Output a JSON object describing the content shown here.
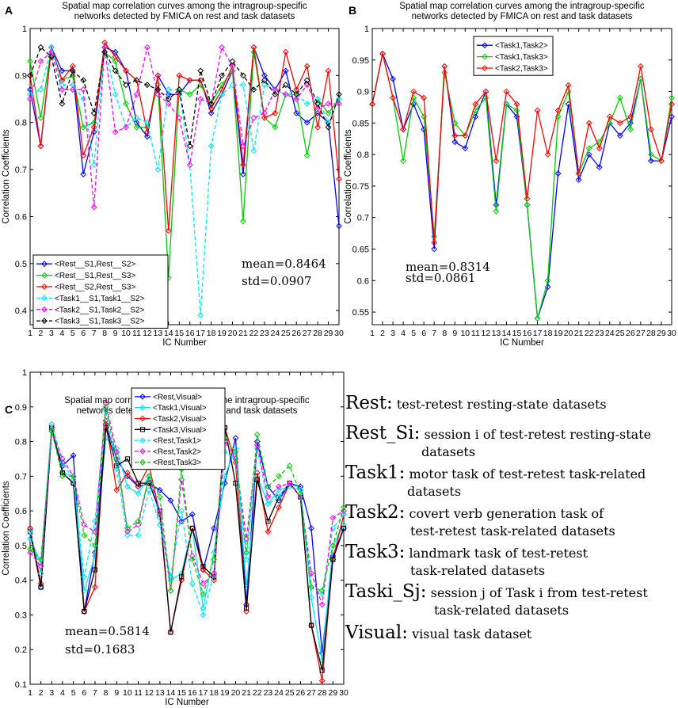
{
  "chart_data": [
    {
      "panel_label": "A",
      "type": "line",
      "title": "Spatial map correlation curves among the intragroup-specific networks detected by FMICA on rest and task datasets",
      "title_lines": [
        "Spatial map correlation curves among the intragroup-specific",
        "networks detected by FMICA on rest and task datasets"
      ],
      "xlabel": "IC Number",
      "ylabel": "Correlation Coefficients",
      "xlim": [
        1,
        30
      ],
      "ylim": [
        0.37,
        1
      ],
      "yticks": [
        0.4,
        0.5,
        0.6,
        0.7,
        0.8,
        0.9,
        1
      ],
      "ytick_labels": [
        "0.4",
        "0.5",
        "0.6",
        "0.7",
        "0.8",
        "0.9",
        "1"
      ],
      "x": [
        1,
        2,
        3,
        4,
        5,
        6,
        7,
        8,
        9,
        10,
        11,
        12,
        13,
        14,
        15,
        16,
        17,
        18,
        19,
        20,
        21,
        22,
        23,
        24,
        25,
        26,
        27,
        28,
        29,
        30
      ],
      "legend_position": "bottom-left",
      "stats": [
        "mean=0.8464",
        "std=0.0907"
      ],
      "series": [
        {
          "name": "<Rest__S1,Rest__S2>",
          "color": "#0000ff",
          "dash": "",
          "marker": "diamond",
          "values": [
            0.87,
            0.75,
            0.96,
            0.91,
            0.91,
            0.69,
            0.78,
            0.96,
            0.95,
            0.91,
            0.8,
            0.77,
            0.9,
            0.86,
            0.86,
            0.89,
            0.89,
            0.82,
            0.86,
            0.91,
            0.69,
            0.96,
            0.9,
            0.87,
            0.91,
            0.82,
            0.8,
            0.82,
            0.8,
            0.58
          ]
        },
        {
          "name": "<Rest__S1,Rest__S3>",
          "color": "#00cc00",
          "dash": "",
          "marker": "diamond",
          "values": [
            0.93,
            0.81,
            0.96,
            0.89,
            0.9,
            0.79,
            0.8,
            0.95,
            0.93,
            0.84,
            0.79,
            0.79,
            0.88,
            0.47,
            0.87,
            0.86,
            0.88,
            0.84,
            0.88,
            0.91,
            0.59,
            0.95,
            0.81,
            0.79,
            0.86,
            0.86,
            0.73,
            0.85,
            0.82,
            0.85
          ]
        },
        {
          "name": "<Rest__S2,Rest__S3>",
          "color": "#ff0000",
          "dash": "",
          "marker": "diamond",
          "values": [
            0.9,
            0.75,
            0.96,
            0.89,
            0.92,
            0.73,
            0.79,
            0.97,
            0.94,
            0.91,
            0.89,
            0.78,
            0.9,
            0.57,
            0.9,
            0.89,
            0.89,
            0.83,
            0.87,
            0.92,
            0.71,
            0.96,
            0.81,
            0.82,
            0.95,
            0.87,
            0.92,
            0.79,
            0.91,
            0.68
          ]
        },
        {
          "name": "<Task1__S1,Task1__S2>",
          "color": "#00e5ff",
          "dash": "5,3",
          "marker": "diamond",
          "values": [
            0.86,
            0.87,
            0.96,
            0.88,
            0.88,
            0.85,
            0.71,
            0.96,
            0.86,
            0.79,
            0.81,
            0.8,
            0.7,
            0.87,
            0.87,
            0.71,
            0.39,
            0.75,
            0.86,
            0.88,
            0.88,
            0.74,
            0.88,
            0.87,
            0.86,
            0.86,
            0.84,
            0.85,
            0.8,
            0.85
          ]
        },
        {
          "name": "<Task2__S1,Task2__S2>",
          "color": "#ff00ff",
          "dash": "5,3",
          "marker": "diamond",
          "values": [
            0.85,
            0.93,
            0.95,
            0.87,
            0.87,
            0.87,
            0.62,
            0.96,
            0.78,
            0.79,
            0.86,
            0.96,
            0.86,
            0.84,
            0.81,
            0.71,
            0.85,
            0.84,
            0.96,
            0.92,
            0.75,
            0.81,
            0.82,
            0.87,
            0.86,
            0.85,
            0.88,
            0.83,
            0.84,
            0.84
          ]
        },
        {
          "name": "<Task3__S1,Task3__S2>",
          "color": "#000000",
          "dash": "5,3",
          "marker": "diamond",
          "values": [
            0.9,
            0.96,
            0.94,
            0.84,
            0.91,
            0.89,
            0.82,
            0.95,
            0.91,
            0.88,
            0.89,
            0.88,
            0.87,
            0.85,
            0.87,
            0.75,
            0.91,
            0.84,
            0.9,
            0.93,
            0.9,
            0.87,
            0.89,
            0.86,
            0.88,
            0.86,
            0.89,
            0.84,
            0.79,
            0.86
          ]
        }
      ]
    },
    {
      "panel_label": "B",
      "type": "line",
      "title": "Spatial map correlation curves among the intragroup-specific networks detected by FMICA on rest and task datasets",
      "title_lines": [
        "Spatial map correlation curves among the intragroup-specific",
        "networks detected by FMICA on rest and task datasets"
      ],
      "xlabel": "IC Number",
      "ylabel": "Correlation Coefficients",
      "xlim": [
        1,
        30
      ],
      "ylim": [
        0.53,
        1
      ],
      "yticks": [
        0.55,
        0.6,
        0.65,
        0.7,
        0.75,
        0.8,
        0.85,
        0.9,
        0.95,
        1
      ],
      "ytick_labels": [
        "0.55",
        "0.6",
        "0.65",
        "0.7",
        "0.75",
        "0.8",
        "0.85",
        "0.9",
        "0.95",
        "1"
      ],
      "x": [
        1,
        2,
        3,
        4,
        5,
        6,
        7,
        8,
        9,
        10,
        11,
        12,
        13,
        14,
        15,
        16,
        17,
        18,
        19,
        20,
        21,
        22,
        23,
        24,
        25,
        26,
        27,
        28,
        29,
        30
      ],
      "legend_position": "top-left",
      "stats": [
        "mean=0.8314",
        "std=0.0861"
      ],
      "series": [
        {
          "name": "<Task1,Task2>",
          "color": "#0000ff",
          "dash": "",
          "marker": "diamond",
          "values": [
            0.88,
            0.96,
            0.92,
            0.84,
            0.88,
            0.84,
            0.65,
            0.94,
            0.82,
            0.81,
            0.86,
            0.9,
            0.72,
            0.88,
            0.86,
            0.72,
            0.54,
            0.59,
            0.77,
            0.88,
            0.76,
            0.8,
            0.78,
            0.85,
            0.83,
            0.85,
            0.92,
            0.79,
            0.79,
            0.86
          ]
        },
        {
          "name": "<Task1,Task3>",
          "color": "#00cc00",
          "dash": "",
          "marker": "diamond",
          "values": [
            0.88,
            0.96,
            0.89,
            0.79,
            0.89,
            0.86,
            0.67,
            0.93,
            0.85,
            0.83,
            0.87,
            0.89,
            0.71,
            0.88,
            0.87,
            0.72,
            0.54,
            0.6,
            0.86,
            0.9,
            0.77,
            0.81,
            0.82,
            0.85,
            0.89,
            0.84,
            0.92,
            0.8,
            0.79,
            0.89
          ]
        },
        {
          "name": "<Task2,Task3>",
          "color": "#ff0000",
          "dash": "",
          "marker": "diamond",
          "values": [
            0.88,
            0.96,
            0.89,
            0.84,
            0.9,
            0.89,
            0.66,
            0.94,
            0.83,
            0.83,
            0.88,
            0.9,
            0.79,
            0.9,
            0.88,
            0.73,
            0.87,
            0.8,
            0.87,
            0.91,
            0.77,
            0.85,
            0.81,
            0.86,
            0.85,
            0.86,
            0.94,
            0.84,
            0.79,
            0.88
          ]
        }
      ]
    },
    {
      "panel_label": "C",
      "type": "line",
      "title": "Spatial map correlation curves among the intragroup-specific networks detected by FMICA on rest and task datasets",
      "title_lines": [
        "Spatial map correlation curves among the intragroup-specific",
        "networks detected by FMICA on rest and task datasets"
      ],
      "xlabel": "IC Number",
      "ylabel": "Correlation Coefficients",
      "xlim": [
        1,
        30
      ],
      "ylim": [
        0.1,
        1
      ],
      "yticks": [
        0.1,
        0.2,
        0.3,
        0.4,
        0.5,
        0.6,
        0.7,
        0.8,
        0.9,
        1
      ],
      "ytick_labels": [
        "0.1",
        "0.2",
        "0.3",
        "0.4",
        "0.5",
        "0.6",
        "0.7",
        "0.8",
        "0.9",
        "1"
      ],
      "x": [
        1,
        2,
        3,
        4,
        5,
        6,
        7,
        8,
        9,
        10,
        11,
        12,
        13,
        14,
        15,
        16,
        17,
        18,
        19,
        20,
        21,
        22,
        23,
        24,
        25,
        26,
        27,
        28,
        29,
        30
      ],
      "legend_position": "top-center",
      "stats": [
        "mean=0.5814",
        "std=0.1683"
      ],
      "series": [
        {
          "name": "<Rest,Visual>",
          "color": "#0000ff",
          "dash": "",
          "marker": "diamond",
          "values": [
            0.55,
            0.38,
            0.83,
            0.73,
            0.76,
            0.31,
            0.48,
            0.85,
            0.75,
            0.7,
            0.67,
            0.68,
            0.66,
            0.63,
            0.57,
            0.59,
            0.43,
            0.55,
            0.68,
            0.81,
            0.33,
            0.8,
            0.67,
            0.63,
            0.68,
            0.67,
            0.55,
            0.19,
            0.47,
            0.55
          ]
        },
        {
          "name": "<Task1,Visual>",
          "color": "#00e5ff",
          "dash": "",
          "marker": "diamond",
          "values": [
            0.52,
            0.45,
            0.85,
            0.71,
            0.7,
            0.37,
            0.47,
            0.81,
            0.78,
            0.67,
            0.65,
            0.7,
            0.58,
            0.4,
            0.42,
            0.55,
            0.32,
            0.48,
            0.7,
            0.78,
            0.38,
            0.7,
            0.62,
            0.66,
            0.67,
            0.66,
            0.35,
            0.17,
            0.5,
            0.56
          ]
        },
        {
          "name": "<Task2,Visual>",
          "color": "#ff0000",
          "dash": "",
          "marker": "diamond",
          "values": [
            0.55,
            0.39,
            0.84,
            0.71,
            0.68,
            0.31,
            0.38,
            0.86,
            0.66,
            0.71,
            0.67,
            0.73,
            0.59,
            0.25,
            0.4,
            0.55,
            0.43,
            0.4,
            0.84,
            0.74,
            0.31,
            0.71,
            0.54,
            0.61,
            0.68,
            0.64,
            0.27,
            0.11,
            0.46,
            0.59
          ]
        },
        {
          "name": "<Task3,Visual>",
          "color": "#000000",
          "dash": "",
          "marker": "square",
          "values": [
            0.54,
            0.38,
            0.84,
            0.71,
            0.68,
            0.31,
            0.43,
            0.84,
            0.73,
            0.75,
            0.68,
            0.68,
            0.6,
            0.25,
            0.41,
            0.55,
            0.44,
            0.41,
            0.84,
            0.68,
            0.32,
            0.69,
            0.57,
            0.64,
            0.68,
            0.64,
            0.27,
            0.14,
            0.46,
            0.55
          ]
        },
        {
          "name": "<Rest,Task1>",
          "color": "#00e5ff",
          "dash": "5,3",
          "marker": "diamond",
          "values": [
            0.54,
            0.42,
            0.85,
            0.74,
            0.69,
            0.41,
            0.57,
            0.89,
            0.72,
            0.53,
            0.53,
            0.66,
            0.56,
            0.41,
            0.6,
            0.39,
            0.3,
            0.42,
            0.77,
            0.75,
            0.46,
            0.78,
            0.62,
            0.64,
            0.68,
            0.66,
            0.38,
            0.36,
            0.55,
            0.59
          ]
        },
        {
          "name": "<Rest,Task2>",
          "color": "#ff00ff",
          "dash": "5,3",
          "marker": "diamond",
          "values": [
            0.48,
            0.44,
            0.83,
            0.75,
            0.7,
            0.56,
            0.54,
            0.91,
            0.77,
            0.54,
            0.56,
            0.7,
            0.6,
            0.37,
            0.69,
            0.47,
            0.39,
            0.42,
            0.8,
            0.75,
            0.52,
            0.79,
            0.64,
            0.67,
            0.68,
            0.64,
            0.42,
            0.33,
            0.58,
            0.6
          ]
        },
        {
          "name": "<Rest,Task3>",
          "color": "#00cc00",
          "dash": "5,3",
          "marker": "diamond",
          "values": [
            0.49,
            0.46,
            0.83,
            0.7,
            0.7,
            0.53,
            0.5,
            0.9,
            0.75,
            0.55,
            0.57,
            0.7,
            0.64,
            0.37,
            0.72,
            0.46,
            0.36,
            0.46,
            0.81,
            0.77,
            0.48,
            0.82,
            0.67,
            0.7,
            0.73,
            0.65,
            0.38,
            0.37,
            0.5,
            0.61
          ]
        }
      ]
    }
  ],
  "abbreviations": [
    {
      "term": "Rest:",
      "desc": "test-retest resting-state datasets",
      "desc2": ""
    },
    {
      "term": "Rest_Si:",
      "desc": "session i of test-retest resting-state",
      "desc2": "datasets"
    },
    {
      "term": "Task1:",
      "desc": "motor task of test-retest task-related",
      "desc2": "datasets"
    },
    {
      "term": "Task2:",
      "desc": "covert verb generation task of",
      "desc2": "test-retest task-related datasets"
    },
    {
      "term": "Task3:",
      "desc": "landmark task of test-retest",
      "desc2": "task-related datasets"
    },
    {
      "term": "Taski_Sj:",
      "desc": "session j of Task i from test-retest",
      "desc2": "task-related datasets"
    },
    {
      "term": "Visual:",
      "desc": "visual task dataset",
      "desc2": ""
    }
  ]
}
